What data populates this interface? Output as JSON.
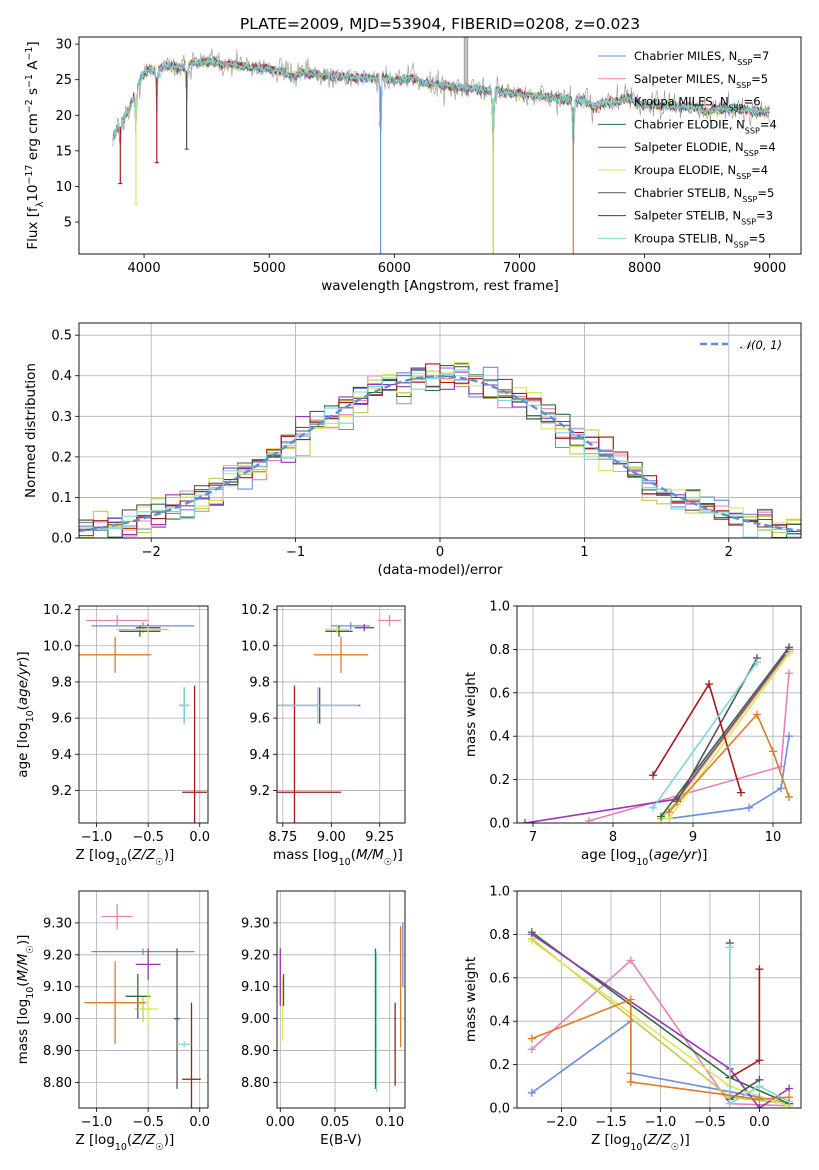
{
  "figure_title": "PLATE=2009, MJD=53904, FIBERID=0208, z=0.023",
  "colors": {
    "Chabrier MILES": "#6a8fdc",
    "Salpeter MILES": "#e582b9",
    "Kroupa MILES": "#c9c94a",
    "Chabrier ELODIE": "#2f6e36",
    "Salpeter ELODIE": "#9a33b4",
    "Kroupa ELODIE": "#dce65c",
    "Chabrier STELIB": "#555555",
    "Salpeter STELIB": "#a61a1a",
    "Kroupa STELIB": "#7fd6dc",
    "orange": "#e07b28",
    "gray_spectrum": "#8a8a8a"
  },
  "chart_data": [
    {
      "type": "line",
      "panel": "spectrum",
      "xlabel": "wavelength [Angstrom, rest frame]",
      "ylabel": "Flux [f_λ 10^-17 erg cm^-2 s^-1 A^-1]",
      "ylabel_parts": {
        "flux": "Flux [f",
        "lambda": "λ",
        "ten": "10",
        "e17": "−17",
        "erg": " erg cm",
        "m2": "−2",
        "s": " s",
        "m1": "−1",
        "A": " A",
        "m1b": "−1",
        "close": "]"
      },
      "xlim": [
        3480,
        9250
      ],
      "ylim": [
        0.5,
        31
      ],
      "xticks": [
        4000,
        5000,
        6000,
        7000,
        8000,
        9000
      ],
      "yticks": [
        5,
        10,
        15,
        20,
        25,
        30
      ],
      "legend_position": "upper right",
      "legend": [
        {
          "name": "Chabrier MILES, N",
          "sub": "SSP",
          "tail": "=7",
          "key": "Chabrier MILES"
        },
        {
          "name": "Salpeter MILES, N",
          "sub": "SSP",
          "tail": "=5",
          "key": "Salpeter MILES"
        },
        {
          "name": "Kroupa MILES, N",
          "sub": "SSP",
          "tail": "=6",
          "key": "Kroupa MILES"
        },
        {
          "name": "Chabrier ELODIE, N",
          "sub": "SSP",
          "tail": "=4",
          "key": "Chabrier ELODIE"
        },
        {
          "name": "Salpeter ELODIE, N",
          "sub": "SSP",
          "tail": "=4",
          "key": "Salpeter ELODIE"
        },
        {
          "name": "Kroupa ELODIE, N",
          "sub": "SSP",
          "tail": "=4",
          "key": "Kroupa ELODIE"
        },
        {
          "name": "Chabrier STELIB, N",
          "sub": "SSP",
          "tail": "=5",
          "key": "Chabrier STELIB"
        },
        {
          "name": "Salpeter STELIB, N",
          "sub": "SSP",
          "tail": "=3",
          "key": "Salpeter STELIB"
        },
        {
          "name": "Kroupa STELIB, N",
          "sub": "SSP",
          "tail": "=5",
          "key": "Kroupa STELIB"
        }
      ],
      "continuum": [
        [
          3750,
          17
        ],
        [
          3850,
          21
        ],
        [
          3950,
          24
        ],
        [
          4050,
          26
        ],
        [
          4200,
          27
        ],
        [
          4500,
          27.5
        ],
        [
          5000,
          26.5
        ],
        [
          5500,
          25.5
        ],
        [
          6000,
          25
        ],
        [
          6500,
          24
        ],
        [
          7000,
          23
        ],
        [
          7500,
          22
        ],
        [
          8000,
          21.5
        ],
        [
          8500,
          21
        ],
        [
          9000,
          20.5
        ]
      ],
      "features": [
        {
          "x": 3810,
          "depth": 9,
          "key": "Salpeter STELIB"
        },
        {
          "x": 3935,
          "depth": 16,
          "key": "Kroupa ELODIE"
        },
        {
          "x": 4102,
          "depth": 13,
          "key": "Salpeter STELIB"
        },
        {
          "x": 4340,
          "depth": 12,
          "key": "Chabrier STELIB"
        },
        {
          "x": 5890,
          "depth": 27,
          "key": "Chabrier MILES"
        },
        {
          "x": 6790,
          "depth": 23,
          "key": "Kroupa MILES"
        },
        {
          "x": 7430,
          "depth": 23,
          "key": "orange"
        }
      ],
      "spikes": [
        {
          "x": 6563,
          "top": 31
        },
        {
          "x": 6583,
          "top": 31
        }
      ]
    },
    {
      "type": "line",
      "panel": "residuals",
      "xlabel": "(data-model)/error",
      "ylabel": "Normed distribution",
      "xlim": [
        -2.5,
        2.5
      ],
      "ylim": [
        0,
        0.53
      ],
      "xticks": [
        -2,
        -1,
        0,
        1,
        2
      ],
      "yticks": [
        0.0,
        0.1,
        0.2,
        0.3,
        0.4,
        0.5
      ],
      "grid": true,
      "legend_position": "upper right",
      "legend": [
        {
          "name": "𝒩(0, 1)",
          "style": "dashed",
          "color": "#5b8fd6"
        }
      ],
      "bin_width": 0.1
    },
    {
      "type": "scatter",
      "panel": "age-vs-Z",
      "xlabel": "Z [log10(Z/Z☉)]",
      "ylabel": "age [log10(age/yr)]",
      "xlim": [
        -1.17,
        0.08
      ],
      "ylim": [
        9.02,
        10.22
      ],
      "xticks": [
        -1.0,
        -0.5,
        0.0
      ],
      "yticks": [
        9.2,
        9.4,
        9.6,
        9.8,
        10.0,
        10.2
      ],
      "grid": true,
      "points": [
        {
          "x": -0.55,
          "y": 10.11,
          "xerr": 0.5,
          "yerr": 0.02,
          "key": "Chabrier MILES"
        },
        {
          "x": -0.8,
          "y": 10.14,
          "xerr": 0.3,
          "yerr": 0.03,
          "key": "Salpeter MILES"
        },
        {
          "x": -0.55,
          "y": 10.09,
          "xerr": 0.25,
          "yerr": 0.02,
          "key": "Kroupa MILES"
        },
        {
          "x": -0.58,
          "y": 10.08,
          "xerr": 0.2,
          "yerr": 0.03,
          "key": "Chabrier ELODIE"
        },
        {
          "x": -0.5,
          "y": 10.1,
          "xerr": 0.12,
          "yerr": 0.02,
          "key": "Salpeter ELODIE"
        },
        {
          "x": -0.5,
          "y": 10.09,
          "xerr": 0.1,
          "yerr": 0.02,
          "key": "Kroupa ELODIE"
        },
        {
          "x": -0.15,
          "y": 9.67,
          "xerr": 0.05,
          "yerr": 0.1,
          "key": "Chabrier STELIB"
        },
        {
          "x": -0.05,
          "y": 9.19,
          "xerr": 0.12,
          "yerr": 0.59,
          "key": "Salpeter STELIB"
        },
        {
          "x": -0.15,
          "y": 9.67,
          "xerr": 0.05,
          "yerr": 0.1,
          "key": "Kroupa STELIB"
        },
        {
          "x": -0.82,
          "y": 9.95,
          "xerr": 0.35,
          "yerr": 0.1,
          "key": "orange"
        }
      ]
    },
    {
      "type": "scatter",
      "panel": "age-vs-mass",
      "xlabel": "mass [log10(M/M☉)]",
      "ylabel": "",
      "xlim": [
        8.72,
        9.38
      ],
      "ylim": [
        9.02,
        10.22
      ],
      "xticks": [
        8.75,
        9.0,
        9.25
      ],
      "yticks": [
        9.2,
        9.4,
        9.6,
        9.8,
        10.0,
        10.2
      ],
      "grid": true,
      "points": [
        {
          "x": 9.1,
          "y": 10.11,
          "xerr": 0.1,
          "yerr": 0.02,
          "key": "Chabrier MILES"
        },
        {
          "x": 9.3,
          "y": 10.14,
          "xerr": 0.06,
          "yerr": 0.03,
          "key": "Salpeter MILES"
        },
        {
          "x": 9.03,
          "y": 10.09,
          "xerr": 0.06,
          "yerr": 0.02,
          "key": "Kroupa MILES"
        },
        {
          "x": 9.04,
          "y": 10.08,
          "xerr": 0.07,
          "yerr": 0.03,
          "key": "Chabrier ELODIE"
        },
        {
          "x": 9.17,
          "y": 10.1,
          "xerr": 0.05,
          "yerr": 0.02,
          "key": "Salpeter ELODIE"
        },
        {
          "x": 9.03,
          "y": 10.09,
          "xerr": 0.05,
          "yerr": 0.02,
          "key": "Kroupa ELODIE"
        },
        {
          "x": 8.94,
          "y": 9.67,
          "xerr": 0.21,
          "yerr": 0.1,
          "key": "Chabrier STELIB"
        },
        {
          "x": 8.81,
          "y": 9.19,
          "xerr": 0.24,
          "yerr": 0.59,
          "key": "Salpeter STELIB"
        },
        {
          "x": 8.93,
          "y": 9.67,
          "xerr": 0.21,
          "yerr": 0.1,
          "key": "Kroupa STELIB"
        },
        {
          "x": 9.05,
          "y": 9.95,
          "xerr": 0.14,
          "yerr": 0.1,
          "key": "orange"
        }
      ]
    },
    {
      "type": "line",
      "panel": "mass-weight-vs-age",
      "xlabel": "age [log10(age/yr)]",
      "ylabel": "mass weight",
      "xlim": [
        6.8,
        10.35
      ],
      "ylim": [
        0,
        1
      ],
      "xticks": [
        7,
        8,
        9,
        10
      ],
      "yticks": [
        0.0,
        0.2,
        0.4,
        0.6,
        0.8,
        1.0
      ],
      "grid": true,
      "series": [
        {
          "key": "Chabrier MILES",
          "x": [
            8.7,
            9.7,
            10.1,
            10.2
          ],
          "y": [
            0.02,
            0.07,
            0.16,
            0.4
          ]
        },
        {
          "key": "Salpeter MILES",
          "x": [
            7.7,
            10.1,
            10.2
          ],
          "y": [
            0.01,
            0.26,
            0.69
          ]
        },
        {
          "key": "Kroupa MILES",
          "x": [
            8.6,
            8.8,
            10.2
          ],
          "y": [
            0.02,
            0.1,
            0.79
          ]
        },
        {
          "key": "Chabrier ELODIE",
          "x": [
            8.6,
            10.2
          ],
          "y": [
            0.03,
            0.81
          ]
        },
        {
          "key": "Salpeter ELODIE",
          "x": [
            6.9,
            8.8,
            10.2
          ],
          "y": [
            0.0,
            0.11,
            0.8
          ]
        },
        {
          "key": "Kroupa ELODIE",
          "x": [
            8.7,
            10.2
          ],
          "y": [
            0.02,
            0.78
          ]
        },
        {
          "key": "Chabrier STELIB",
          "x": [
            8.8,
            9.8
          ],
          "y": [
            0.1,
            0.76
          ]
        },
        {
          "key": "Salpeter STELIB",
          "x": [
            8.5,
            9.2,
            9.6
          ],
          "y": [
            0.22,
            0.64,
            0.14
          ]
        },
        {
          "key": "Kroupa STELIB",
          "x": [
            8.5,
            9.8
          ],
          "y": [
            0.07,
            0.74
          ]
        },
        {
          "key": "orange",
          "x": [
            8.7,
            9.8,
            10.0,
            10.2
          ],
          "y": [
            0.05,
            0.5,
            0.33,
            0.12
          ]
        }
      ]
    },
    {
      "type": "scatter",
      "panel": "mass-vs-Z",
      "xlabel": "Z [log10(Z/Z☉)]",
      "ylabel": "mass [log10(M/M☉)]",
      "xlim": [
        -1.17,
        0.08
      ],
      "ylim": [
        8.72,
        9.4
      ],
      "xticks": [
        -1.0,
        -0.5,
        0.0
      ],
      "yticks": [
        8.8,
        8.9,
        9.0,
        9.1,
        9.2,
        9.3
      ],
      "grid": true,
      "points": [
        {
          "x": -0.55,
          "y": 9.21,
          "xerr": 0.5,
          "yerr": 0.01,
          "key": "Chabrier MILES"
        },
        {
          "x": -0.8,
          "y": 9.32,
          "xerr": 0.15,
          "yerr": 0.04,
          "key": "Salpeter MILES"
        },
        {
          "x": -0.55,
          "y": 9.03,
          "xerr": 0.08,
          "yerr": 0.04,
          "key": "Kroupa MILES"
        },
        {
          "x": -0.6,
          "y": 9.07,
          "xerr": 0.12,
          "yerr": 0.07,
          "key": "Chabrier ELODIE"
        },
        {
          "x": -0.5,
          "y": 9.17,
          "xerr": 0.12,
          "yerr": 0.05,
          "key": "Salpeter ELODIE"
        },
        {
          "x": -0.5,
          "y": 9.03,
          "xerr": 0.1,
          "yerr": 0.05,
          "key": "Kroupa ELODIE"
        },
        {
          "x": -0.22,
          "y": 9.0,
          "xerr": 0.03,
          "yerr": 0.22,
          "key": "Chabrier STELIB"
        },
        {
          "x": -0.08,
          "y": 8.81,
          "xerr": 0.09,
          "yerr": 0.24,
          "key": "Salpeter STELIB"
        },
        {
          "x": -0.15,
          "y": 8.92,
          "xerr": 0.07,
          "yerr": 0.01,
          "key": "Kroupa STELIB"
        },
        {
          "x": -0.82,
          "y": 9.05,
          "xerr": 0.3,
          "yerr": 0.13,
          "key": "orange"
        }
      ]
    },
    {
      "type": "scatter",
      "panel": "mass-vs-EBV",
      "xlabel": "E(B-V)",
      "ylabel": "",
      "xlim": [
        -0.003,
        0.114
      ],
      "ylim": [
        8.72,
        9.4
      ],
      "xticks": [
        0.0,
        0.05,
        0.1
      ],
      "yticks": [
        8.8,
        8.9,
        9.0,
        9.1,
        9.2,
        9.3
      ],
      "grid": true,
      "points": [
        {
          "x": 0.0,
          "y": 9.13,
          "yerr": 0.09,
          "key": "Salpeter ELODIE"
        },
        {
          "x": 0.002,
          "y": 9.03,
          "yerr": 0.1,
          "key": "Kroupa ELODIE"
        },
        {
          "x": 0.003,
          "y": 9.09,
          "yerr": 0.05,
          "key": "Chabrier STELIB"
        },
        {
          "x": 0.087,
          "y": 9.0,
          "yerr": 0.22,
          "key": "Chabrier ELODIE"
        },
        {
          "x": 0.088,
          "y": 8.99,
          "yerr": 0.22,
          "key": "Kroupa STELIB"
        },
        {
          "x": 0.1,
          "y": 9.3,
          "yerr": 0.09,
          "key": "Salpeter MILES"
        },
        {
          "x": 0.105,
          "y": 8.92,
          "yerr": 0.13,
          "key": "Salpeter STELIB"
        },
        {
          "x": 0.11,
          "y": 9.1,
          "yerr": 0.19,
          "key": "orange"
        },
        {
          "x": 0.112,
          "y": 9.2,
          "yerr": 0.1,
          "key": "Chabrier MILES"
        }
      ]
    },
    {
      "type": "line",
      "panel": "mass-weight-vs-Z",
      "xlabel": "Z [log10(Z/Z☉)]",
      "ylabel": "mass weight",
      "xlim": [
        -2.45,
        0.42
      ],
      "ylim": [
        0,
        1
      ],
      "xticks": [
        -2.0,
        -1.5,
        -1.0,
        -0.5,
        0.0
      ],
      "yticks": [
        0.0,
        0.2,
        0.4,
        0.6,
        0.8,
        1.0
      ],
      "grid": true,
      "series": [
        {
          "key": "Chabrier MILES",
          "x": [
            -2.3,
            -1.3,
            -1.3,
            0.0,
            0.3
          ],
          "y": [
            0.07,
            0.4,
            0.16,
            0.05,
            0.02
          ]
        },
        {
          "key": "Salpeter MILES",
          "x": [
            -2.3,
            -1.3,
            -0.3,
            0.3
          ],
          "y": [
            0.27,
            0.68,
            0.02,
            0.01
          ]
        },
        {
          "key": "Kroupa MILES",
          "x": [
            -2.3,
            -0.3,
            0.3
          ],
          "y": [
            0.78,
            0.05,
            0.02
          ]
        },
        {
          "key": "Chabrier ELODIE",
          "x": [
            -2.3,
            -0.3,
            0.3
          ],
          "y": [
            0.81,
            0.14,
            0.02
          ]
        },
        {
          "key": "Salpeter ELODIE",
          "x": [
            -2.3,
            -0.3,
            0.0,
            0.3
          ],
          "y": [
            0.8,
            0.18,
            0.0,
            0.09
          ]
        },
        {
          "key": "Kroupa ELODIE",
          "x": [
            -2.3,
            -0.3,
            0.3
          ],
          "y": [
            0.77,
            0.1,
            0.01
          ]
        },
        {
          "key": "Chabrier STELIB",
          "x": [
            -0.3,
            -0.3,
            0.0
          ],
          "y": [
            0.76,
            0.04,
            0.13
          ]
        },
        {
          "key": "Salpeter STELIB",
          "x": [
            -0.3,
            0.0,
            0.0
          ],
          "y": [
            0.14,
            0.22,
            0.64
          ]
        },
        {
          "key": "Kroupa STELIB",
          "x": [
            -0.3,
            -0.3,
            0.0,
            0.3
          ],
          "y": [
            0.74,
            0.02,
            0.1,
            0.03
          ]
        },
        {
          "key": "orange",
          "x": [
            -2.3,
            -1.3,
            -1.3,
            0.0,
            0.3
          ],
          "y": [
            0.32,
            0.5,
            0.12,
            0.04,
            0.05
          ]
        }
      ]
    }
  ]
}
